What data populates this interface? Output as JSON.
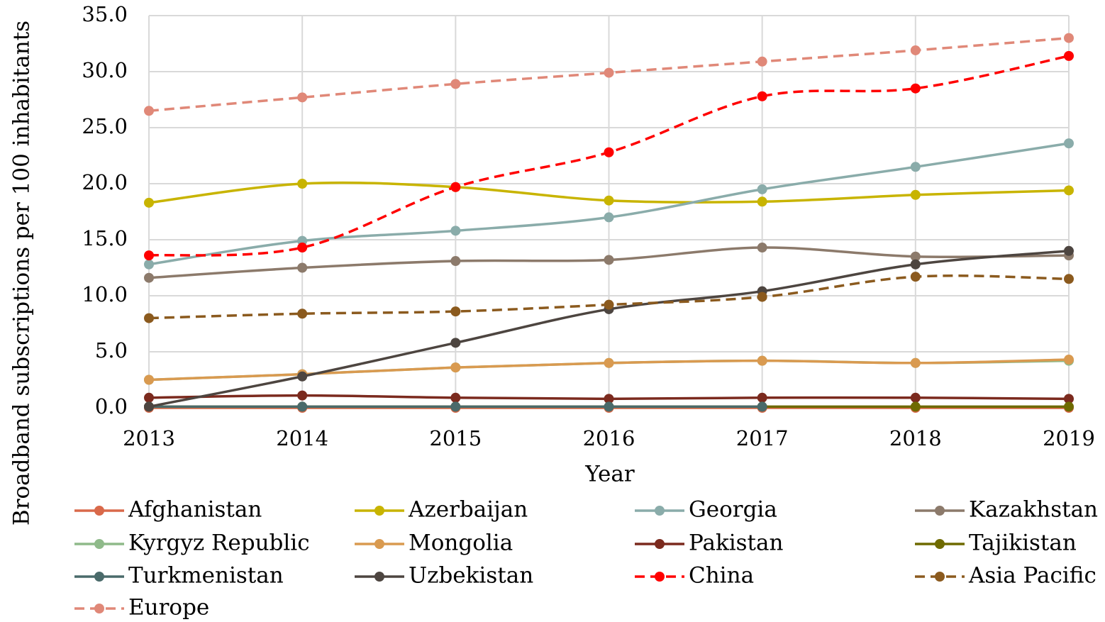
{
  "chart_data": {
    "type": "line",
    "xlabel": "Year",
    "ylabel": "Broadband subscriptions per 100 inhabitants",
    "categories": [
      "2013",
      "2014",
      "2015",
      "2016",
      "2017",
      "2018",
      "2019"
    ],
    "ylim": [
      0,
      35
    ],
    "yticks": [
      {
        "value": 0,
        "label": "0.0"
      },
      {
        "value": 5,
        "label": "5.0"
      },
      {
        "value": 10,
        "label": "10.0"
      },
      {
        "value": 15,
        "label": "15.0"
      },
      {
        "value": 20,
        "label": "20.0"
      },
      {
        "value": 25,
        "label": "25.0"
      },
      {
        "value": 30,
        "label": "30.0"
      },
      {
        "value": 35,
        "label": "35.0"
      }
    ],
    "grid": true,
    "legend": "bottom",
    "series": [
      {
        "name": "Afghanistan",
        "color": "#d9694a",
        "dashed": false,
        "values": [
          0.0,
          0.0,
          0.0,
          0.0,
          0.0,
          0.0,
          0.0
        ]
      },
      {
        "name": "Azerbaijan",
        "color": "#c8b400",
        "dashed": false,
        "values": [
          18.3,
          20.0,
          19.7,
          18.5,
          18.4,
          19.0,
          19.4
        ]
      },
      {
        "name": "Georgia",
        "color": "#8aacaa",
        "dashed": false,
        "values": [
          12.8,
          14.9,
          15.8,
          17.0,
          19.5,
          21.5,
          23.6
        ]
      },
      {
        "name": "Kazakhstan",
        "color": "#8c7a6b",
        "dashed": false,
        "values": [
          11.6,
          12.5,
          13.1,
          13.2,
          14.3,
          13.5,
          13.6
        ]
      },
      {
        "name": "Kyrgyz Republic",
        "color": "#8fba8a",
        "dashed": false,
        "values": [
          2.5,
          3.0,
          3.6,
          4.0,
          4.2,
          4.0,
          4.2
        ]
      },
      {
        "name": "Mongolia",
        "color": "#d99a50",
        "dashed": false,
        "values": [
          2.5,
          3.0,
          3.6,
          4.0,
          4.2,
          4.0,
          4.3
        ]
      },
      {
        "name": "Pakistan",
        "color": "#7b2a1e",
        "dashed": false,
        "values": [
          0.9,
          1.1,
          0.9,
          0.8,
          0.9,
          0.9,
          0.8
        ]
      },
      {
        "name": "Tajikistan",
        "color": "#6e6a00",
        "dashed": false,
        "values": [
          0.1,
          0.1,
          0.1,
          0.1,
          0.1,
          0.1,
          0.1
        ]
      },
      {
        "name": "Turkmenistan",
        "color": "#4a6a6a",
        "dashed": false,
        "values": [
          0.1,
          0.1,
          0.1,
          0.1,
          0.1,
          null,
          null
        ]
      },
      {
        "name": "Uzbekistan",
        "color": "#4d4540",
        "dashed": false,
        "values": [
          0.1,
          2.8,
          5.8,
          8.8,
          10.4,
          12.8,
          14.0
        ]
      },
      {
        "name": "China",
        "color": "#ff0000",
        "dashed": true,
        "values": [
          13.6,
          14.3,
          19.7,
          22.8,
          27.8,
          28.5,
          31.4
        ]
      },
      {
        "name": "Asia Pacific",
        "color": "#8b5a1e",
        "dashed": true,
        "values": [
          8.0,
          8.4,
          8.6,
          9.2,
          9.9,
          11.7,
          11.5
        ]
      },
      {
        "name": "Europe",
        "color": "#e08878",
        "dashed": true,
        "values": [
          26.5,
          27.7,
          28.9,
          29.9,
          30.9,
          31.9,
          33.0
        ]
      }
    ]
  }
}
